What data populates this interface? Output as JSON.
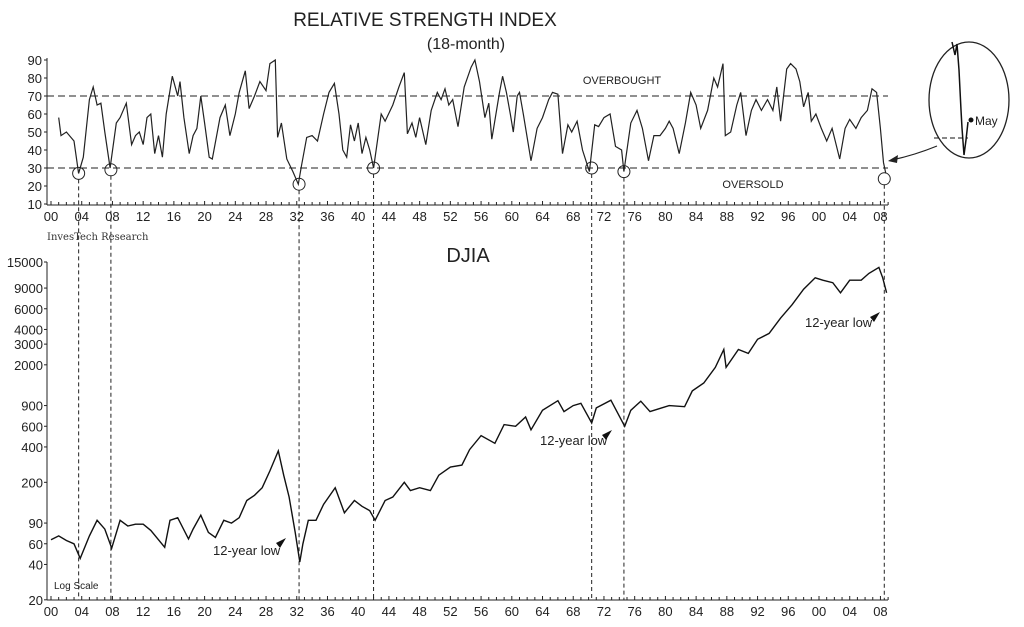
{
  "chart_data": [
    {
      "type": "line",
      "title": "RELATIVE STRENGTH INDEX",
      "subtitle": "(18-month)",
      "ylim": [
        10,
        90
      ],
      "yticks": [
        10,
        20,
        30,
        40,
        50,
        60,
        70,
        80,
        90
      ],
      "xlim": [
        1900,
        2009
      ],
      "xtick_labels": [
        "00",
        "04",
        "08",
        "12",
        "16",
        "20",
        "24",
        "28",
        "32",
        "36",
        "40",
        "44",
        "48",
        "52",
        "56",
        "60",
        "64",
        "68",
        "72",
        "76",
        "80",
        "84",
        "88",
        "92",
        "96",
        "00",
        "04",
        "08"
      ],
      "reference_lines": [
        {
          "value": 70,
          "label": "OVERBOUGHT"
        },
        {
          "value": 30,
          "label": "OVERSOLD"
        }
      ],
      "source": "InvesTech Research",
      "oversold_markers": [
        [
          1903.6,
          27
        ],
        [
          1907.8,
          29
        ],
        [
          1932.3,
          21
        ],
        [
          1942,
          30
        ],
        [
          1970.4,
          30
        ],
        [
          1974.6,
          28
        ],
        [
          2008.5,
          24
        ]
      ],
      "inset_label": "May",
      "x": [
        1901,
        1901.3,
        1902,
        1903,
        1903.6,
        1904.2,
        1905,
        1905.5,
        1906,
        1906.5,
        1907,
        1907.7,
        1908.5,
        1909,
        1909.8,
        1910.5,
        1911,
        1911.5,
        1912,
        1912.5,
        1913,
        1913.5,
        1914,
        1914.5,
        1915,
        1915.8,
        1916.5,
        1916.8,
        1917.3,
        1918,
        1918.5,
        1919,
        1919.5,
        1920,
        1920.6,
        1921,
        1922,
        1922.7,
        1923.3,
        1924,
        1924.5,
        1925.3,
        1925.8,
        1926.5,
        1927.2,
        1928,
        1928.5,
        1929.2,
        1929.5,
        1930,
        1930.7,
        1931.5,
        1932.2,
        1932.6,
        1933.3,
        1934,
        1934.7,
        1935.5,
        1936.2,
        1936.9,
        1937.5,
        1938,
        1938.5,
        1939,
        1939.5,
        1940,
        1940.5,
        1941,
        1941.5,
        1942,
        1943,
        1943.5,
        1944.5,
        1945.3,
        1946,
        1946.4,
        1947,
        1947.5,
        1948,
        1948.8,
        1949.5,
        1950.3,
        1950.8,
        1951.3,
        1951.8,
        1952.3,
        1953,
        1953.8,
        1954.7,
        1955.2,
        1955.8,
        1956.5,
        1957,
        1957.4,
        1958.4,
        1958.8,
        1959.3,
        1959.8,
        1960.2,
        1960.7,
        1961,
        1961.5,
        1962.5,
        1963.3,
        1964,
        1964.8,
        1965.3,
        1966,
        1966.6,
        1967.3,
        1967.8,
        1968.5,
        1969.2,
        1970.1,
        1970.8,
        1971.3,
        1972,
        1972.8,
        1973.5,
        1974.3,
        1974.6,
        1975.5,
        1976.3,
        1977,
        1977.8,
        1978.5,
        1979.3,
        1980,
        1980.5,
        1981,
        1981.8,
        1982.6,
        1983.3,
        1984,
        1984.6,
        1985.5,
        1986.3,
        1986.8,
        1987.5,
        1987.8,
        1988.5,
        1989.3,
        1989.8,
        1990.5,
        1991.2,
        1991.8,
        1992.5,
        1993.3,
        1994,
        1994.5,
        1995,
        1995.8,
        1996.3,
        1997,
        1997.5,
        1998,
        1998.6,
        1999,
        1999.6,
        2000.3,
        2001,
        2001.7,
        2002.7,
        2003.4,
        2004,
        2004.8,
        2005.5,
        2006.3,
        2006.9,
        2007.5,
        2008,
        2008.4,
        2008.7
      ],
      "values": [
        58,
        48,
        50,
        45,
        27,
        36,
        68,
        75,
        65,
        66,
        50,
        30,
        55,
        58,
        66,
        43,
        48,
        50,
        43,
        58,
        60,
        38,
        48,
        36,
        60,
        81,
        70,
        78,
        58,
        38,
        48,
        52,
        70,
        55,
        36,
        35,
        58,
        65,
        48,
        60,
        72,
        84,
        63,
        70,
        78,
        73,
        88,
        90,
        47,
        55,
        35,
        28,
        21,
        31,
        47,
        48,
        45,
        60,
        72,
        77,
        60,
        40,
        36,
        54,
        45,
        55,
        38,
        47,
        40,
        30,
        60,
        56,
        65,
        75,
        83,
        49,
        55,
        47,
        58,
        43,
        62,
        72,
        68,
        74,
        65,
        68,
        53,
        75,
        86,
        90,
        78,
        58,
        66,
        46,
        72,
        81,
        72,
        60,
        50,
        70,
        72,
        60,
        34,
        52,
        58,
        68,
        72,
        71,
        38,
        54,
        50,
        56,
        40,
        28,
        54,
        53,
        58,
        60,
        42,
        40,
        28,
        55,
        62,
        52,
        34,
        48,
        48,
        52,
        56,
        52,
        38,
        55,
        72,
        65,
        52,
        62,
        80,
        75,
        88,
        48,
        50,
        65,
        72,
        48,
        62,
        68,
        62,
        68,
        62,
        75,
        56,
        85,
        88,
        85,
        78,
        64,
        72,
        56,
        60,
        52,
        45,
        52,
        35,
        52,
        57,
        52,
        58,
        62,
        74,
        72,
        52,
        33,
        27
      ]
    },
    {
      "type": "line",
      "title": "DJIA",
      "yscale": "log",
      "ylim": [
        20,
        15000
      ],
      "yticks": [
        20,
        40,
        60,
        90,
        200,
        400,
        600,
        900,
        2000,
        3000,
        4000,
        6000,
        9000,
        15000
      ],
      "xlim": [
        1900,
        2009
      ],
      "xtick_labels": [
        "00",
        "04",
        "08",
        "12",
        "16",
        "20",
        "24",
        "28",
        "32",
        "36",
        "40",
        "44",
        "48",
        "52",
        "56",
        "60",
        "64",
        "68",
        "72",
        "76",
        "80",
        "84",
        "88",
        "92",
        "96",
        "00",
        "04",
        "08"
      ],
      "scale_note": "Log Scale",
      "annotations": [
        {
          "text": "12-year low",
          "x": 1932
        },
        {
          "text": "12-year low",
          "x": 1974.6
        },
        {
          "text": "12-year low",
          "x": 2008.5
        }
      ],
      "x": [
        1900,
        1901,
        1902,
        1903,
        1903.8,
        1905,
        1906,
        1907,
        1907.9,
        1909,
        1910,
        1911,
        1912,
        1913,
        1914.8,
        1915.5,
        1916.5,
        1917.9,
        1918.5,
        1919.5,
        1920.5,
        1921.4,
        1922.5,
        1923.5,
        1924.5,
        1925.5,
        1926.5,
        1927.5,
        1928.5,
        1929.6,
        1930.3,
        1931,
        1931.8,
        1932.4,
        1932.8,
        1933.5,
        1934.5,
        1935.5,
        1937,
        1938.2,
        1939.5,
        1940.5,
        1941.5,
        1942.2,
        1943.5,
        1944.5,
        1946,
        1946.8,
        1948,
        1949.4,
        1950.5,
        1952,
        1953.5,
        1954.5,
        1956,
        1957.8,
        1959,
        1960.5,
        1961.8,
        1962.5,
        1964,
        1966,
        1966.8,
        1968,
        1969,
        1970.4,
        1971,
        1972.9,
        1974.7,
        1975.5,
        1976.8,
        1978,
        1979.5,
        1980.5,
        1982.5,
        1983.5,
        1985,
        1986.5,
        1987.6,
        1987.9,
        1989.5,
        1990.8,
        1992,
        1993.5,
        1995,
        1996.5,
        1998,
        1999.5,
        2000.5,
        2001.8,
        2002.8,
        2004,
        2005.5,
        2006.5,
        2007.8,
        2008.3,
        2008.8
      ],
      "values": [
        65,
        70,
        64,
        60,
        45,
        70,
        95,
        80,
        55,
        95,
        85,
        88,
        88,
        78,
        56,
        95,
        100,
        66,
        80,
        105,
        75,
        68,
        95,
        90,
        100,
        140,
        155,
        180,
        250,
        370,
        230,
        150,
        75,
        42,
        60,
        95,
        95,
        130,
        180,
        110,
        140,
        125,
        115,
        95,
        140,
        150,
        200,
        170,
        180,
        170,
        230,
        270,
        280,
        380,
        500,
        430,
        620,
        600,
        720,
        560,
        820,
        990,
        800,
        900,
        940,
        640,
        860,
        1000,
        600,
        820,
        980,
        800,
        860,
        900,
        880,
        1200,
        1400,
        1900,
        2700,
        1900,
        2700,
        2500,
        3300,
        3700,
        5000,
        6500,
        8800,
        11000,
        10500,
        10000,
        8200,
        10500,
        10500,
        12000,
        13500,
        11000,
        8200
      ]
    }
  ]
}
